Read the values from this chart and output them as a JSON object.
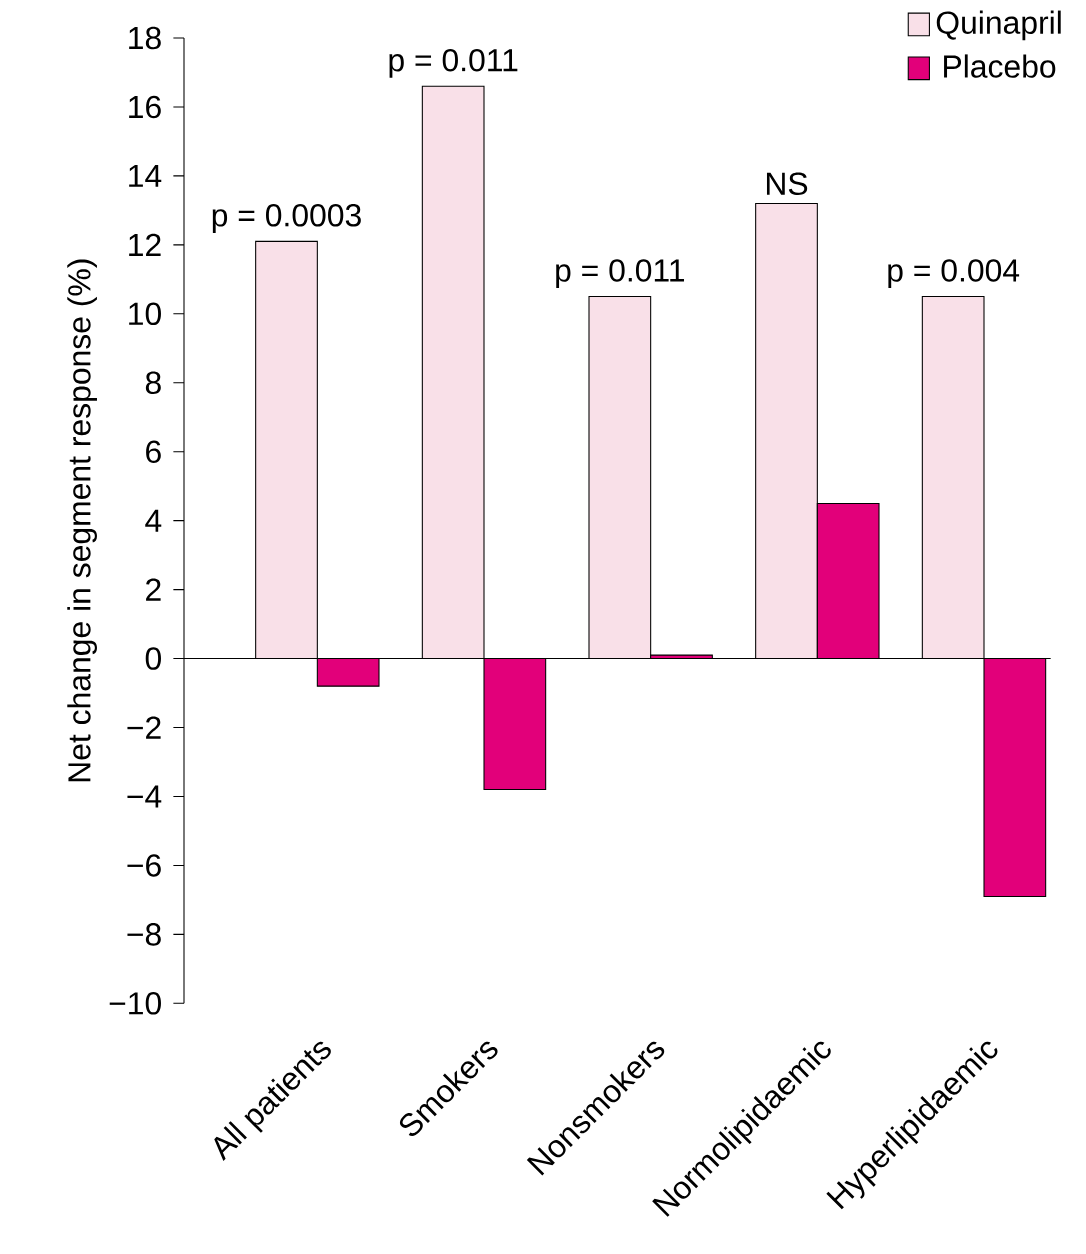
{
  "chart_data": {
    "type": "bar",
    "ylabel": "Net change in segment response (%)",
    "categories": [
      "All patients",
      "Smokers",
      "Nonsmokers",
      "Normolipidaemic",
      "Hyperlipidaemic"
    ],
    "series": [
      {
        "name": "Quinapril",
        "color": "#f9e0e8",
        "values": [
          12.1,
          16.6,
          10.5,
          13.2,
          10.5
        ]
      },
      {
        "name": "Placebo",
        "color": "#e2007a",
        "values": [
          -0.8,
          -3.8,
          0.1,
          4.5,
          -6.9
        ]
      }
    ],
    "ylim": [
      -10,
      18
    ],
    "yticks": [
      {
        "value": -10,
        "label": "−10"
      },
      {
        "value": -8,
        "label": "−8"
      },
      {
        "value": -6,
        "label": "−6"
      },
      {
        "value": -4,
        "label": "−4"
      },
      {
        "value": -2,
        "label": "−2"
      },
      0,
      2,
      4,
      6,
      8,
      10,
      12,
      14,
      16,
      18
    ],
    "legend": "top right",
    "annotations": [
      {
        "text": "p = 0.0003",
        "x": "All patients",
        "y": 12.1
      },
      {
        "text": "p = 0.011",
        "x": "Smokers",
        "y": 16.6
      },
      {
        "text": "p = 0.011",
        "x": "Nonsmokers",
        "y": 10.5
      },
      {
        "text": "NS",
        "x": "Normolipidaemic",
        "y": 13.2
      },
      {
        "text": "p = 0.004",
        "x": "Hyperlipidaemic",
        "y": 10.5
      }
    ]
  }
}
